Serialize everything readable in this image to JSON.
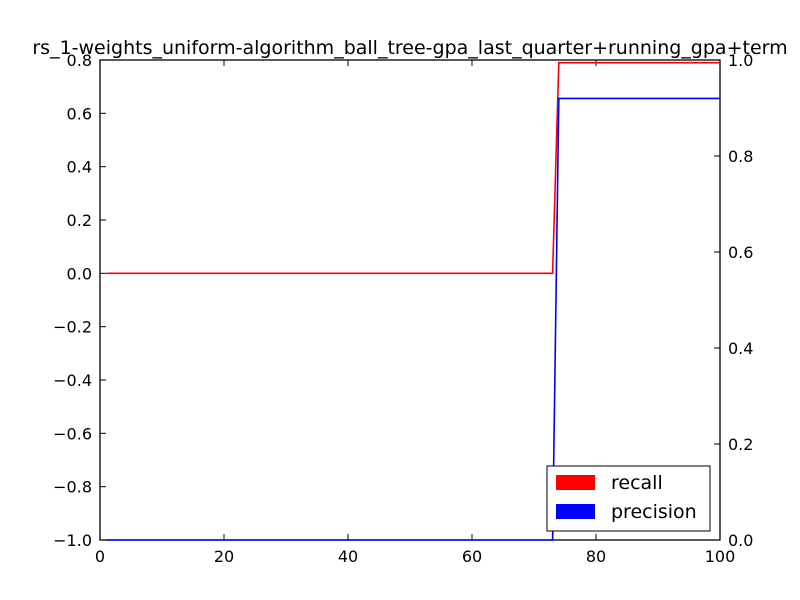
{
  "chart_data": {
    "type": "line",
    "title": "rs_1-weights_uniform-algorithm_ball_tree-gpa_last_quarter+running_gpa+term",
    "xlabel": "",
    "ylabel_left": "",
    "ylabel_right": "",
    "xlim": [
      0,
      100
    ],
    "ylim_left": [
      -1.0,
      0.8
    ],
    "ylim_right": [
      0.0,
      1.0
    ],
    "x_ticks": [
      "0",
      "20",
      "40",
      "60",
      "80",
      "100"
    ],
    "y_left_ticks": [
      "−1.0",
      "−0.8",
      "−0.6",
      "−0.4",
      "−0.2",
      "0.0",
      "0.2",
      "0.4",
      "0.6",
      "0.8"
    ],
    "y_right_ticks": [
      "0.0",
      "0.2",
      "0.4",
      "0.6",
      "0.8",
      "1.0"
    ],
    "grid": false,
    "legend_position": "bottom-right",
    "series": [
      {
        "name": "recall",
        "color": "#ff0000",
        "axis": "left",
        "x": [
          1,
          73,
          74,
          100
        ],
        "y": [
          0.0,
          0.0,
          0.79,
          0.79
        ]
      },
      {
        "name": "precision",
        "color": "#0000ff",
        "axis": "right",
        "x": [
          1,
          73,
          74,
          100
        ],
        "y": [
          0.0,
          0.0,
          0.92,
          0.92
        ]
      }
    ]
  }
}
